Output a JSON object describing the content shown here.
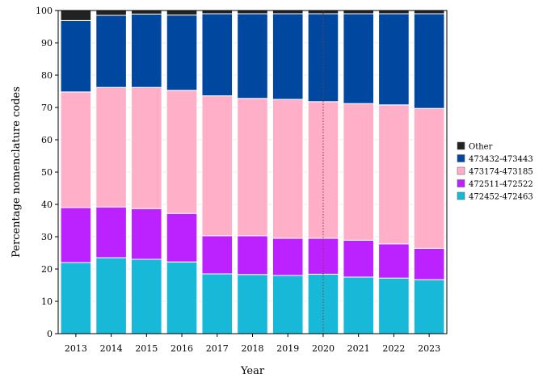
{
  "chart_data": {
    "type": "bar",
    "stacked": true,
    "xlabel": "Year",
    "ylabel": "Percentage nomenclature codes",
    "ylim": [
      0,
      100
    ],
    "yticks": [
      0,
      10,
      20,
      30,
      40,
      50,
      60,
      70,
      80,
      90,
      100
    ],
    "grid": true,
    "legend_position": "right",
    "reference_line": {
      "x": "2020",
      "style": "dotted",
      "color": "#8b3a3a"
    },
    "categories": [
      "2013",
      "2014",
      "2015",
      "2016",
      "2017",
      "2018",
      "2019",
      "2020",
      "2021",
      "2022",
      "2023"
    ],
    "series": [
      {
        "name": "472452-472463",
        "color": "#17b8d8",
        "values": [
          22.0,
          23.5,
          23.0,
          22.2,
          18.5,
          18.3,
          18.0,
          18.4,
          17.5,
          17.2,
          16.7
        ]
      },
      {
        "name": "472511-472522",
        "color": "#bb22ff",
        "values": [
          17.0,
          15.7,
          15.7,
          15.0,
          11.8,
          12.0,
          11.5,
          11.1,
          11.4,
          10.6,
          9.7
        ]
      },
      {
        "name": "473174-473185",
        "color": "#ffb0c8",
        "values": [
          35.8,
          37.0,
          37.5,
          38.1,
          43.3,
          42.5,
          43.0,
          42.3,
          42.3,
          43.0,
          43.3
        ]
      },
      {
        "name": "473432-473443",
        "color": "#0047a0",
        "values": [
          22.1,
          22.3,
          22.7,
          23.3,
          25.4,
          26.2,
          26.5,
          27.2,
          27.8,
          28.2,
          29.3
        ]
      },
      {
        "name": "Other",
        "color": "#222222",
        "values": [
          3.1,
          1.5,
          1.1,
          1.4,
          1.0,
          1.0,
          1.0,
          1.0,
          1.0,
          1.0,
          1.0
        ]
      }
    ],
    "legend_order": [
      "Other",
      "473432-473443",
      "473174-473185",
      "472511-472522",
      "472452-472463"
    ]
  }
}
